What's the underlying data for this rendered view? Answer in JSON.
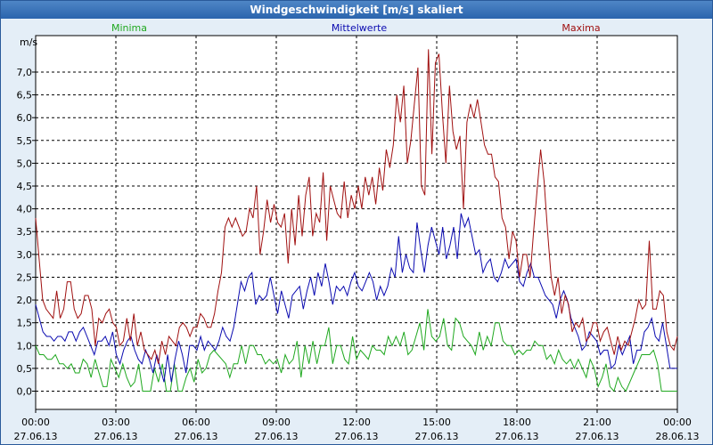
{
  "window": {
    "title": "Windgeschwindigkeit [m/s] skaliert"
  },
  "colors": {
    "min": "#1fa81f",
    "mean": "#0a0ab0",
    "max": "#a01010"
  },
  "chart_data": {
    "type": "line",
    "title": "Windgeschwindigkeit [m/s] skaliert",
    "ylabel": "m/s",
    "ylim": [
      -0.4,
      7.8
    ],
    "yticks": [
      0.0,
      0.5,
      1.0,
      1.5,
      2.0,
      2.5,
      3.0,
      3.5,
      4.0,
      4.5,
      5.0,
      5.5,
      6.0,
      6.5,
      7.0
    ],
    "ytick_labels": [
      "0,0",
      "0,5",
      "1,0",
      "1,5",
      "2,0",
      "2,5",
      "3,0",
      "3,5",
      "4,0",
      "4,5",
      "5,0",
      "5,5",
      "6,0",
      "6,5",
      "7,0"
    ],
    "xlim_hours": [
      0,
      24
    ],
    "xticks": [
      {
        "hour": 0,
        "time": "00:00",
        "date": "27.06.13"
      },
      {
        "hour": 3,
        "time": "03:00",
        "date": "27.06.13"
      },
      {
        "hour": 6,
        "time": "06:00",
        "date": "27.06.13"
      },
      {
        "hour": 9,
        "time": "09:00",
        "date": "27.06.13"
      },
      {
        "hour": 12,
        "time": "12:00",
        "date": "27.06.13"
      },
      {
        "hour": 15,
        "time": "15:00",
        "date": "27.06.13"
      },
      {
        "hour": 18,
        "time": "18:00",
        "date": "27.06.13"
      },
      {
        "hour": 21,
        "time": "21:00",
        "date": "27.06.13"
      },
      {
        "hour": 24,
        "time": "00:00",
        "date": "28.06.13"
      }
    ],
    "grid": true,
    "legend_position": "top",
    "series": [
      {
        "name": "Minima",
        "key": "min",
        "values": [
          1.0,
          0.8,
          0.8,
          0.7,
          0.7,
          0.8,
          0.6,
          0.6,
          0.5,
          0.6,
          0.4,
          0.4,
          0.7,
          0.6,
          0.3,
          0.7,
          0.4,
          0.1,
          0.1,
          0.7,
          0.5,
          0.3,
          0.6,
          0.3,
          0.1,
          0.2,
          0.6,
          0.0,
          0.0,
          0.0,
          0.5,
          0.2,
          0.6,
          0.0,
          0.0,
          0.6,
          0.0,
          0.0,
          0.3,
          0.5,
          0.2,
          0.7,
          0.4,
          0.5,
          0.8,
          0.9,
          0.8,
          0.7,
          0.6,
          0.3,
          0.6,
          0.6,
          1.0,
          0.6,
          1.0,
          1.0,
          0.8,
          0.8,
          0.6,
          0.7,
          0.6,
          0.7,
          0.4,
          0.8,
          0.6,
          0.7,
          1.1,
          0.3,
          1.0,
          0.6,
          1.1,
          0.6,
          1.0,
          1.0,
          1.4,
          0.6,
          1.0,
          1.0,
          0.7,
          0.6,
          1.2,
          0.7,
          0.9,
          0.8,
          0.7,
          1.0,
          0.9,
          0.9,
          0.8,
          1.2,
          1.0,
          1.2,
          1.0,
          1.3,
          0.8,
          0.9,
          1.2,
          1.5,
          0.9,
          1.8,
          1.2,
          1.1,
          1.2,
          1.6,
          1.0,
          0.9,
          1.6,
          1.5,
          1.2,
          1.1,
          1.0,
          0.8,
          1.3,
          0.9,
          1.2,
          1.0,
          1.5,
          1.5,
          1.1,
          1.0,
          1.0,
          0.8,
          0.9,
          0.8,
          0.9,
          0.9,
          1.1,
          1.0,
          1.0,
          0.7,
          0.8,
          0.6,
          0.9,
          0.7,
          0.6,
          0.7,
          0.5,
          0.7,
          0.5,
          0.3,
          0.7,
          0.5,
          0.1,
          0.3,
          0.6,
          0.1,
          0.0,
          0.3,
          0.1,
          0.0,
          0.2,
          0.4,
          0.6,
          0.8,
          0.8,
          0.8,
          0.9,
          0.6,
          0.0,
          0.0,
          0.0,
          0.0,
          0.0
        ]
      },
      {
        "name": "Mittelwerte",
        "key": "mean",
        "values": [
          1.9,
          1.6,
          1.3,
          1.2,
          1.2,
          1.1,
          1.2,
          1.2,
          1.1,
          1.3,
          1.3,
          1.1,
          1.3,
          1.4,
          1.2,
          1.0,
          0.8,
          1.1,
          1.1,
          1.2,
          1.0,
          1.3,
          0.8,
          0.6,
          0.9,
          1.1,
          1.2,
          0.9,
          0.7,
          0.6,
          0.9,
          0.7,
          0.4,
          0.8,
          0.5,
          0.2,
          0.8,
          0.2,
          0.7,
          1.1,
          0.8,
          0.4,
          1.0,
          1.0,
          0.9,
          1.2,
          0.9,
          1.1,
          1.0,
          0.9,
          1.1,
          1.4,
          1.2,
          1.1,
          1.4,
          1.9,
          2.4,
          2.2,
          2.5,
          2.6,
          1.9,
          2.1,
          2.0,
          2.1,
          2.5,
          2.1,
          1.7,
          2.2,
          1.9,
          1.6,
          2.1,
          2.2,
          2.3,
          1.8,
          2.2,
          2.5,
          2.1,
          2.6,
          2.3,
          2.8,
          2.4,
          1.9,
          2.3,
          2.2,
          2.3,
          2.1,
          2.4,
          2.6,
          2.3,
          2.2,
          2.4,
          2.6,
          2.4,
          2.0,
          2.3,
          2.1,
          2.3,
          2.7,
          2.5,
          3.4,
          2.6,
          3.0,
          2.7,
          2.6,
          3.7,
          3.1,
          2.6,
          3.2,
          3.6,
          3.3,
          3.0,
          3.6,
          2.9,
          3.2,
          3.6,
          2.9,
          3.9,
          3.6,
          3.8,
          3.4,
          3.0,
          3.1,
          2.6,
          2.8,
          2.9,
          2.5,
          2.4,
          2.6,
          2.9,
          2.7,
          2.8,
          2.9,
          2.4,
          2.3,
          2.6,
          2.8,
          2.5,
          2.5,
          2.3,
          2.1,
          2.0,
          1.9,
          1.6,
          2.0,
          2.2,
          2.0,
          1.6,
          1.4,
          1.2,
          0.9,
          1.0,
          1.3,
          1.2,
          1.1,
          0.8,
          0.9,
          0.9,
          0.5,
          0.6,
          1.0,
          0.8,
          1.0,
          1.2,
          0.6,
          0.9,
          0.9,
          1.3,
          1.4,
          1.6,
          1.2,
          1.1,
          1.5,
          1.0,
          0.5,
          0.5,
          0.5
        ]
      },
      {
        "name": "Maxima",
        "key": "max",
        "values": [
          3.8,
          2.9,
          2.0,
          1.8,
          1.7,
          1.6,
          2.2,
          1.6,
          1.8,
          2.4,
          2.4,
          1.8,
          1.6,
          1.7,
          2.1,
          2.1,
          1.8,
          1.0,
          1.6,
          1.5,
          1.7,
          1.8,
          1.5,
          1.4,
          1.0,
          1.1,
          1.6,
          1.1,
          1.7,
          1.0,
          1.3,
          0.9,
          0.8,
          0.7,
          0.9,
          0.6,
          1.1,
          0.8,
          1.2,
          1.1,
          1.0,
          1.4,
          1.5,
          1.4,
          1.2,
          1.4,
          1.4,
          1.7,
          1.6,
          1.4,
          1.4,
          1.7,
          2.2,
          2.6,
          3.6,
          3.8,
          3.6,
          3.8,
          3.6,
          3.4,
          3.5,
          4.0,
          3.8,
          4.5,
          3.0,
          3.5,
          4.2,
          3.7,
          4.1,
          3.7,
          3.6,
          3.9,
          2.8,
          4.0,
          3.2,
          4.3,
          3.4,
          4.3,
          4.7,
          3.4,
          3.9,
          3.7,
          4.8,
          3.3,
          4.5,
          4.2,
          3.9,
          3.8,
          4.6,
          3.8,
          4.3,
          4.0,
          4.5,
          4.0,
          4.7,
          4.3,
          4.7,
          4.1,
          4.9,
          4.4,
          5.3,
          4.9,
          5.4,
          6.5,
          5.9,
          6.7,
          5.0,
          5.5,
          6.3,
          7.1,
          4.5,
          4.3,
          7.5,
          5.2,
          7.2,
          7.4,
          6.1,
          5.0,
          6.7,
          5.7,
          5.3,
          5.6,
          4.0,
          5.9,
          6.3,
          6.0,
          6.4,
          5.9,
          5.4,
          5.2,
          5.2,
          4.7,
          4.6,
          3.8,
          3.6,
          2.9,
          3.5,
          3.3,
          2.5,
          3.0,
          3.0,
          2.5,
          3.5,
          4.4,
          5.3,
          4.6,
          3.5,
          2.5,
          2.1,
          2.5,
          1.7,
          2.1,
          1.9,
          1.3,
          1.5,
          1.4,
          1.6,
          1.1,
          1.2,
          1.5,
          1.5,
          1.1,
          1.3,
          1.4,
          1.1,
          0.8,
          1.2,
          0.9,
          1.1,
          1.0,
          1.3,
          1.6,
          2.0,
          1.8,
          1.9,
          3.3,
          1.8,
          1.8,
          2.2,
          2.1,
          1.3,
          1.0,
          0.9,
          1.2
        ]
      }
    ]
  }
}
